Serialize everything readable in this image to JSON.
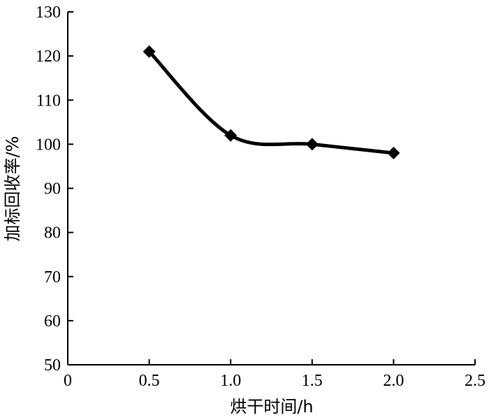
{
  "chart_data": {
    "type": "line",
    "title": "",
    "xlabel": "烘干时间/h",
    "ylabel": "加标回收率/%",
    "xlim": [
      0,
      2.5
    ],
    "ylim": [
      50,
      130
    ],
    "x_ticks": [
      "0",
      "0.5",
      "1.0",
      "1.5",
      "2.0",
      "2.5"
    ],
    "y_ticks": [
      "50",
      "60",
      "70",
      "80",
      "90",
      "100",
      "110",
      "120",
      "130"
    ],
    "grid": false,
    "legend": "none",
    "marker": "diamond",
    "line_color": "#000000",
    "series": [
      {
        "x": [
          0.5,
          1.0,
          1.5,
          2.0
        ],
        "y": [
          121,
          102,
          100,
          98
        ]
      }
    ]
  }
}
